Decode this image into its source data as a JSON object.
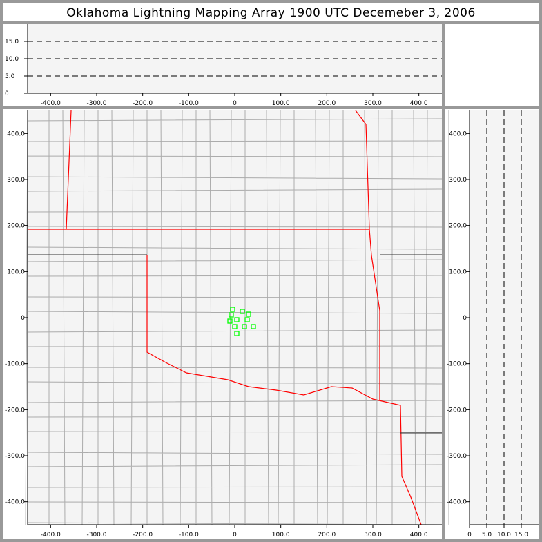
{
  "title": "Oklahoma Lightning Mapping Array   1900 UTC  Decemeber 3, 2006",
  "colors": {
    "background": "#f4f4f4",
    "state_border": "#ff0000",
    "county_border": "#999999",
    "source": "#00ff00",
    "frame": "#999999"
  },
  "chart_data": [
    {
      "type": "scatter",
      "panel": "plan-view",
      "xlim": [
        -450,
        450
      ],
      "ylim": [
        -450,
        450
      ],
      "xticks": [
        "-400.0",
        "-300.0",
        "-200.0",
        "-100.0",
        "0",
        "100.0",
        "200.0",
        "300.0",
        "400.0"
      ],
      "yticks": [
        "400.0",
        "300.0",
        "200.0",
        "100.0",
        "0",
        "-100.0",
        "-200.0",
        "-300.0",
        "-400.0"
      ],
      "marker": "open-square",
      "points": [
        [
          -4.5,
          18
        ],
        [
          16.5,
          13.5
        ],
        [
          30,
          7.5
        ],
        [
          -7.5,
          6
        ],
        [
          4.5,
          -4.5
        ],
        [
          27,
          -4.5
        ],
        [
          -10.5,
          -7.5
        ],
        [
          0,
          -19.5
        ],
        [
          21,
          -19.5
        ],
        [
          40.5,
          -19.5
        ],
        [
          4.5,
          -34.5
        ]
      ]
    },
    {
      "type": "scatter",
      "panel": "east-west-altitude",
      "xlim": [
        -450,
        450
      ],
      "ylim": [
        0,
        20
      ],
      "yticks": [
        "15.0",
        "10.0",
        "5.0",
        "0"
      ],
      "gridlines": [
        5,
        10,
        15
      ],
      "points": []
    },
    {
      "type": "scatter",
      "panel": "north-south-altitude",
      "xlim": [
        0,
        20
      ],
      "ylim": [
        -450,
        450
      ],
      "xticks": [
        "0",
        "5.0",
        "10.0",
        "15.0"
      ],
      "gridlines": [
        5,
        10,
        15
      ],
      "points": []
    }
  ]
}
